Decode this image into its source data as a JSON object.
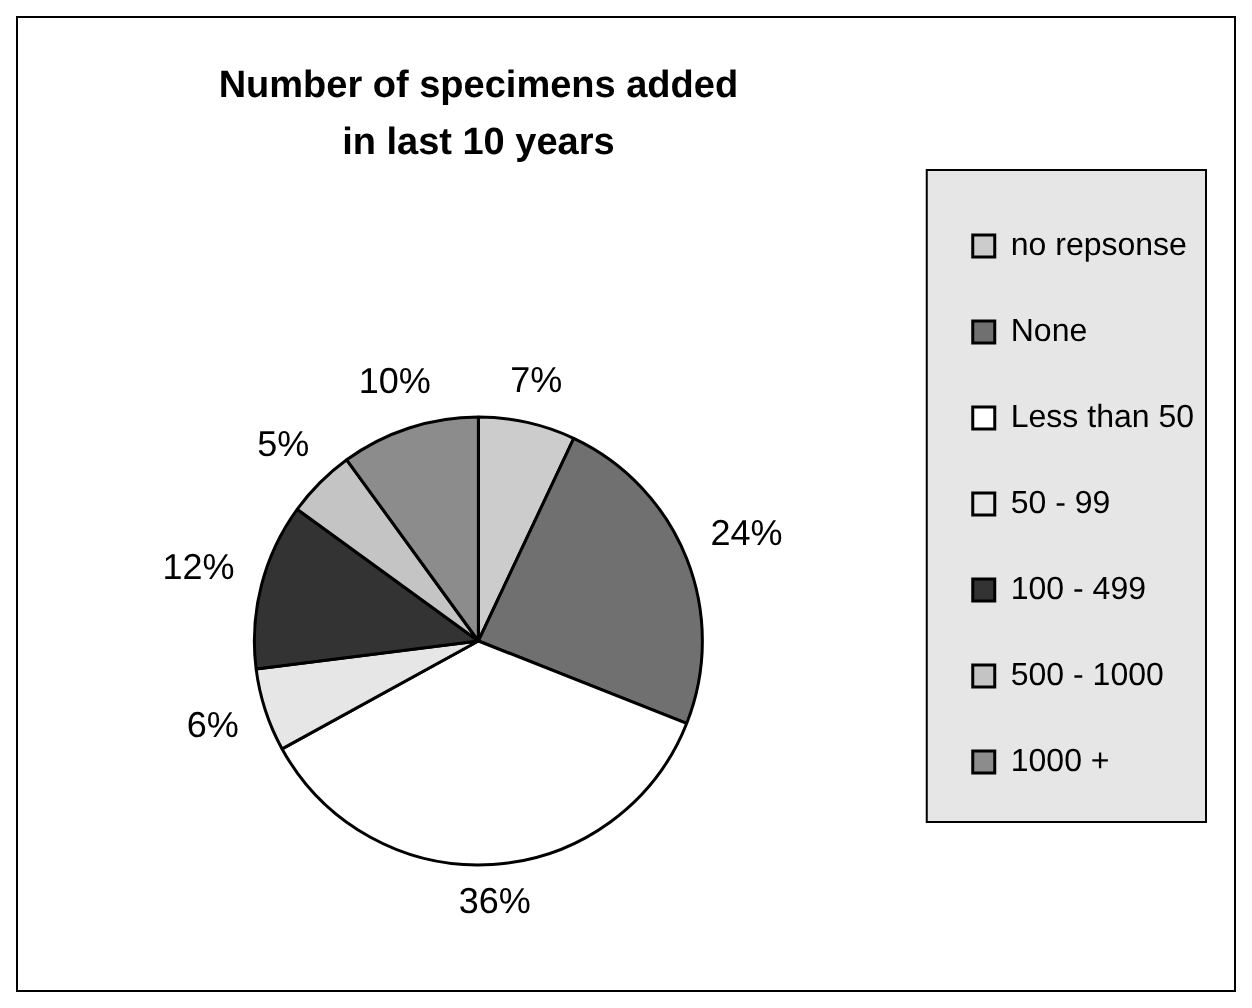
{
  "chart_data": {
    "type": "pie",
    "title": "Number of specimens added in last 10 years",
    "categories": [
      "no repsonse",
      "None",
      "Less than 50",
      "50 - 99",
      "100 - 499",
      "500 - 1000",
      "1000 +"
    ],
    "values": [
      7,
      24,
      36,
      6,
      12,
      5,
      10
    ],
    "colors": [
      "#cccccc",
      "#707070",
      "#ffffff",
      "#e6e6e6",
      "#333333",
      "#c4c4c4",
      "#8c8c8c"
    ],
    "value_labels": [
      "7%",
      "24%",
      "36%",
      "6%",
      "12%",
      "5%",
      "10%"
    ],
    "data_labels": true,
    "legend": "right"
  }
}
